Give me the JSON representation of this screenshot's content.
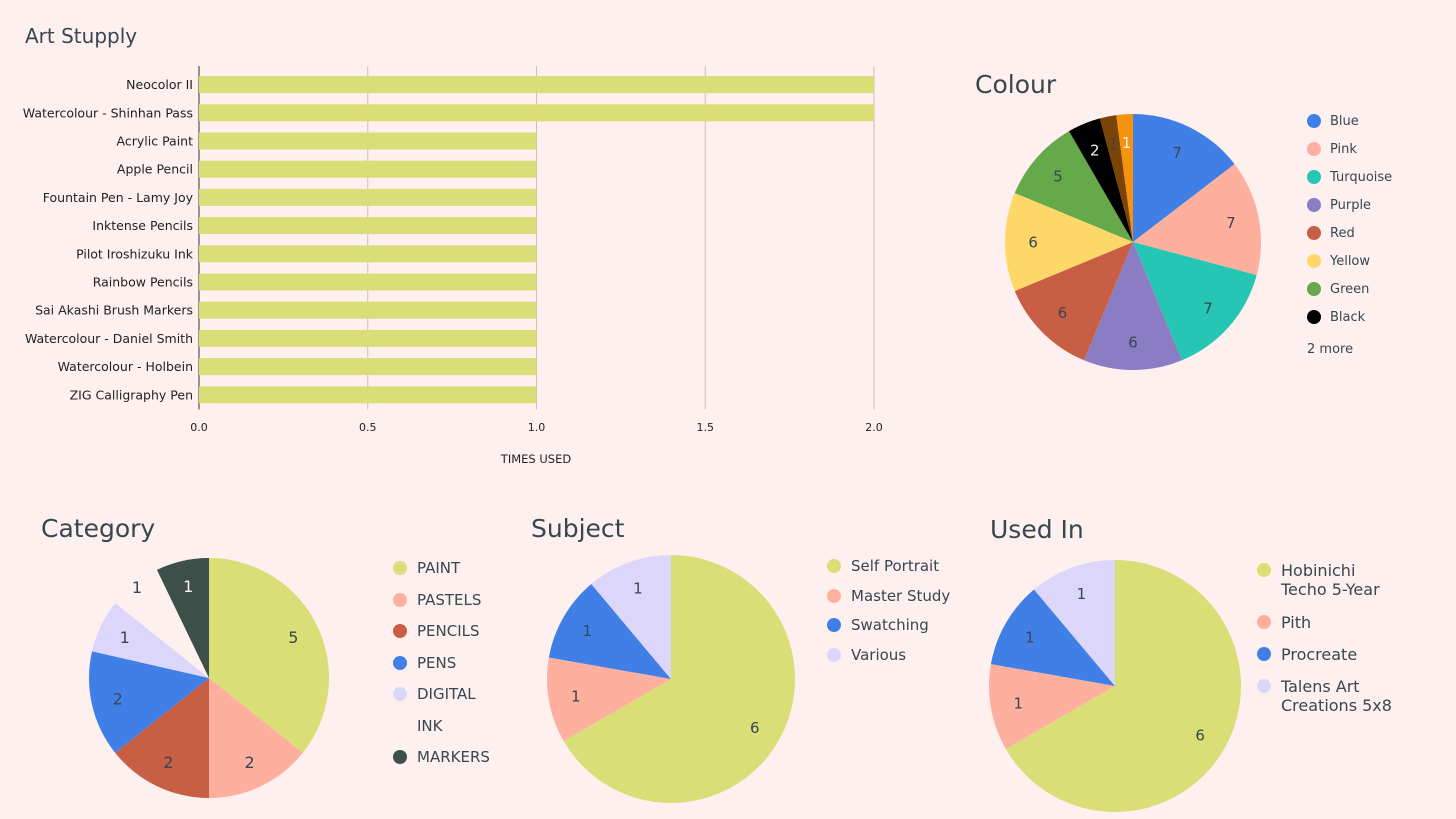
{
  "charts": {
    "bar": {
      "title": "Art Stupply",
      "xlabel": "TIMES USED"
    },
    "colour": {
      "title": "Colour",
      "more_label": "2 more"
    },
    "category": {
      "title": "Category"
    },
    "subject": {
      "title": "Subject"
    },
    "used_in": {
      "title": "Used In"
    }
  },
  "chart_data": [
    {
      "type": "bar",
      "orientation": "horizontal",
      "title": "Art Stupply",
      "xlabel": "TIMES USED",
      "ylabel": "",
      "categories": [
        "Neocolor II",
        "Watercolour - Shinhan Pass",
        "Acrylic Paint",
        "Apple Pencil",
        "Fountain Pen - Lamy Joy",
        "Inktense Pencils",
        "Pilot Iroshizuku Ink",
        "Rainbow Pencils",
        "Sai Akashi Brush Markers",
        "Watercolour - Daniel Smith",
        "Watercolour - Holbein",
        "ZIG Calligraphy Pen"
      ],
      "values": [
        2,
        2,
        1,
        1,
        1,
        1,
        1,
        1,
        1,
        1,
        1,
        1
      ],
      "xlim": [
        0,
        2
      ],
      "xticks": [
        "0.0",
        "0.5",
        "1.0",
        "1.5",
        "2.0"
      ],
      "grid": true,
      "bar_color": "#d9de76"
    },
    {
      "type": "pie",
      "title": "Colour",
      "slices": [
        {
          "label": "Blue",
          "value": 7,
          "color": "#4080e6"
        },
        {
          "label": "Pink",
          "value": 7,
          "color": "#ffaf9e"
        },
        {
          "label": "Turquoise",
          "value": 7,
          "color": "#26c6b4"
        },
        {
          "label": "Purple",
          "value": 6,
          "color": "#8b7dc4"
        },
        {
          "label": "Red",
          "value": 6,
          "color": "#c85f44"
        },
        {
          "label": "Yellow",
          "value": 6,
          "color": "#fdd868"
        },
        {
          "label": "Green",
          "value": 5,
          "color": "#66a94a"
        },
        {
          "label": "Black",
          "value": 2,
          "color": "#000000"
        },
        {
          "label": "",
          "value": 1,
          "color": "#7b4304"
        },
        {
          "label": "",
          "value": 1,
          "color": "#f5940c"
        }
      ],
      "legend_visible_count": 8,
      "legend_more": "2 more",
      "legend_position": "right"
    },
    {
      "type": "pie",
      "title": "Category",
      "slices": [
        {
          "label": "PAINT",
          "value": 5,
          "color": "#d9de76"
        },
        {
          "label": "PASTELS",
          "value": 2,
          "color": "#ffaf9e"
        },
        {
          "label": "PENCILS",
          "value": 2,
          "color": "#c85f44"
        },
        {
          "label": "PENS",
          "value": 2,
          "color": "#4080e6"
        },
        {
          "label": "DIGITAL",
          "value": 1,
          "color": "#ddd6fb"
        },
        {
          "label": "INK",
          "value": 1,
          "color": "#fdf0ef"
        },
        {
          "label": "MARKERS",
          "value": 1,
          "color": "#3c4f49"
        }
      ],
      "legend_position": "right"
    },
    {
      "type": "pie",
      "title": "Subject",
      "slices": [
        {
          "label": "Self Portrait",
          "value": 6,
          "color": "#d9de76"
        },
        {
          "label": "Master Study",
          "value": 1,
          "color": "#ffaf9e"
        },
        {
          "label": "Swatching",
          "value": 1,
          "color": "#4080e6"
        },
        {
          "label": "Various",
          "value": 1,
          "color": "#ddd6fb"
        }
      ],
      "legend_position": "right"
    },
    {
      "type": "pie",
      "title": "Used In",
      "slices": [
        {
          "label": "Hobinichi\nTecho 5-Year",
          "value": 6,
          "color": "#d9de76"
        },
        {
          "label": "Pith",
          "value": 1,
          "color": "#ffaf9e"
        },
        {
          "label": "Procreate",
          "value": 1,
          "color": "#4080e6"
        },
        {
          "label": "Talens Art\nCreations 5x8",
          "value": 1,
          "color": "#ddd6fb"
        }
      ],
      "legend_position": "right"
    }
  ]
}
